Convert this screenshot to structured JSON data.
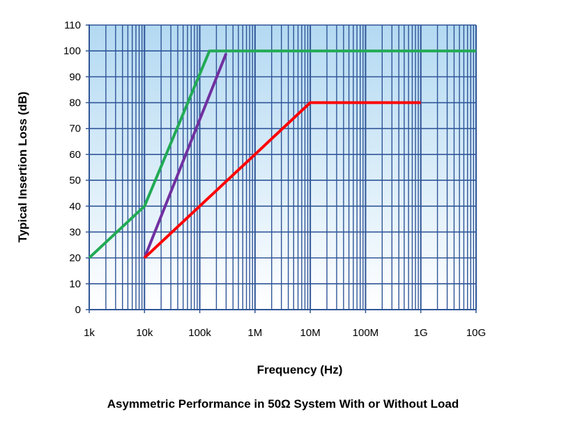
{
  "caption": "Asymmetric Performance in 50Ω System With or Without Load",
  "chart_data": {
    "type": "line",
    "xlabel": "Frequency (Hz)",
    "ylabel": "Typical Insertion Loss (dB)",
    "x_scale": "log",
    "xlim": [
      1000,
      10000000000
    ],
    "ylim": [
      0,
      110
    ],
    "x_ticks": [
      {
        "value": 1000,
        "label": "1k"
      },
      {
        "value": 10000,
        "label": "10k"
      },
      {
        "value": 100000,
        "label": "100k"
      },
      {
        "value": 1000000,
        "label": "1M"
      },
      {
        "value": 10000000,
        "label": "10M"
      },
      {
        "value": 100000000,
        "label": "100M"
      },
      {
        "value": 1000000000,
        "label": "1G"
      },
      {
        "value": 10000000000,
        "label": "10G"
      }
    ],
    "y_ticks": [
      0,
      10,
      20,
      30,
      40,
      50,
      60,
      70,
      80,
      90,
      100,
      110
    ],
    "grid": true,
    "series": [
      {
        "color": "#22aa55",
        "points": [
          [
            1000,
            20
          ],
          [
            10000,
            40
          ],
          [
            150000,
            100
          ],
          [
            10000000000,
            100
          ]
        ]
      },
      {
        "color": "#7030a0",
        "points": [
          [
            10000,
            20
          ],
          [
            300000,
            99
          ]
        ]
      },
      {
        "color": "#ff0000",
        "points": [
          [
            10000,
            20
          ],
          [
            10000000,
            80
          ],
          [
            1000000000,
            80
          ]
        ]
      }
    ],
    "colors": {
      "grid": "#2f5597",
      "plot_bg_top": "#b3d9f2",
      "plot_bg_bottom": "#ffffff",
      "purple_flat": "#22aa55"
    }
  }
}
